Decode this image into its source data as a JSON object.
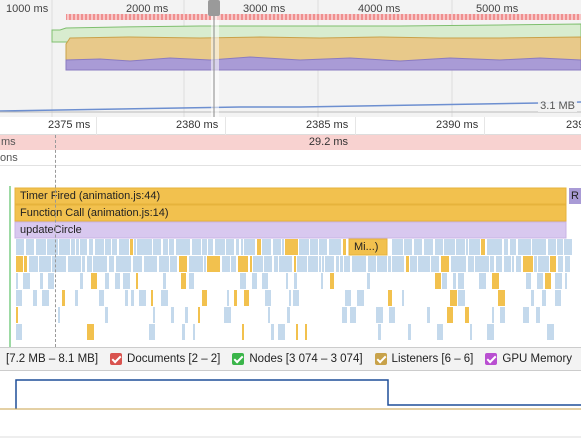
{
  "overview": {
    "ticks": [
      "1000 ms",
      "2000 ms",
      "3000 ms",
      "4000 ms",
      "5000 ms"
    ],
    "memory_label": "3.1 MB"
  },
  "ruler": {
    "ticks": [
      "2375 ms",
      "2380 ms",
      "2385 ms",
      "2390 ms",
      "239"
    ]
  },
  "frames": {
    "left_label": "ms",
    "duration_label": "29.2 ms"
  },
  "interactions": {
    "label": "ons"
  },
  "flame": {
    "timer_fired": "Timer Fired (animation.js:44)",
    "function_call": "Function Call (animation.js:14)",
    "update_circle": "updateCircle",
    "mini_label": "Mi...)",
    "right_cut": "R"
  },
  "counters": {
    "heap": "[7.2 MB – 8.1 MB]",
    "documents": "Documents [2 – 2]",
    "nodes": "Nodes [3 074 – 3 074]",
    "listeners": "Listeners [6 – 6]",
    "gpu": "GPU Memory"
  },
  "colors": {
    "scripting": "#f2c14e",
    "rendering": "#c9b3e6",
    "painting": "#8fcf84",
    "idle_block": "#c4d9ec",
    "frame_pink": "#f8d2d0",
    "documents": "#d9534f",
    "nodes": "#3bb54a",
    "listeners": "#c8a24a",
    "gpu": "#b94fd1",
    "heap_line": "#1f4e99"
  }
}
